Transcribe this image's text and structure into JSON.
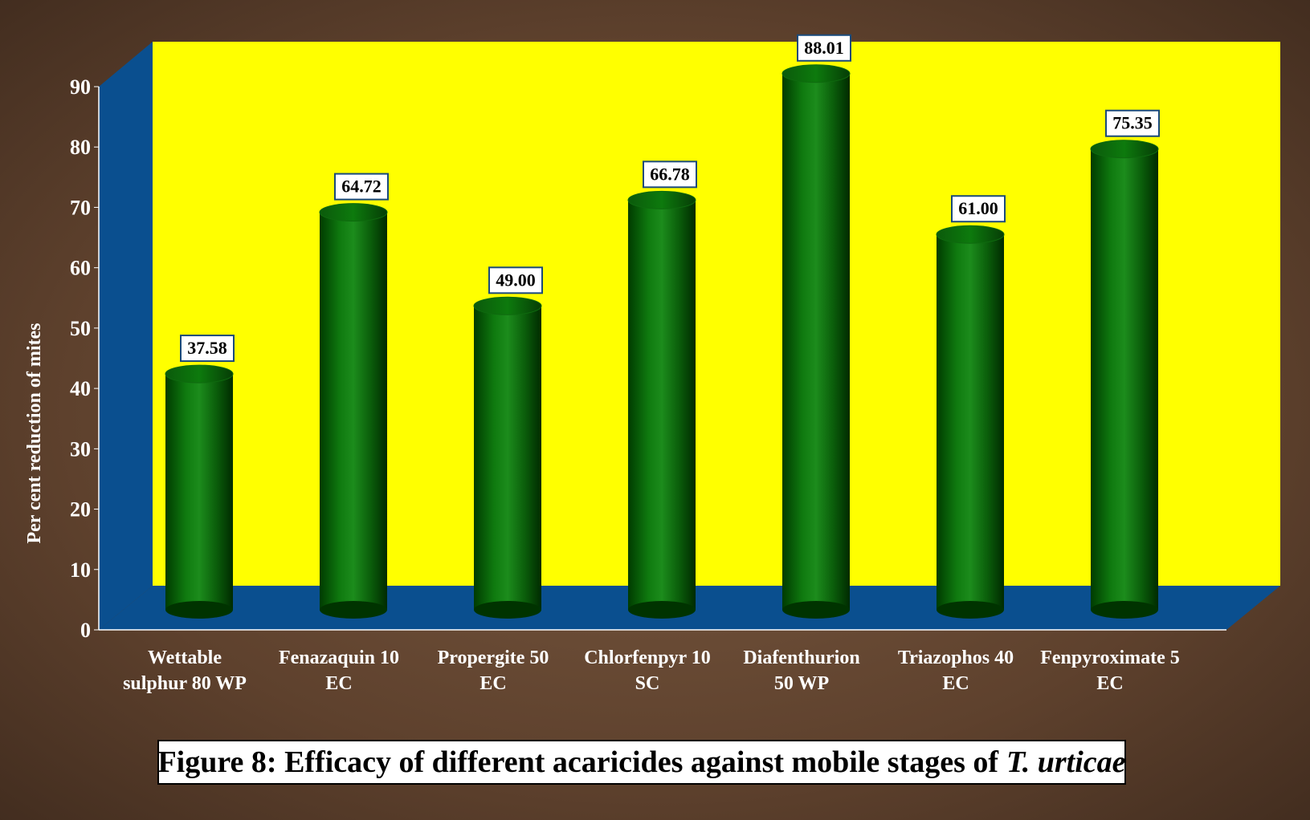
{
  "chart_data": {
    "type": "bar",
    "categories": [
      [
        "Wettable",
        "sulphur 80 WP"
      ],
      [
        "Fenazaquin 10",
        "EC"
      ],
      [
        "Propergite 50",
        "EC"
      ],
      [
        "Chlorfenpyr 10",
        "SC"
      ],
      [
        "Diafenthurion",
        "50 WP"
      ],
      [
        "Triazophos 40",
        "EC"
      ],
      [
        "Fenpyroximate 5",
        "EC"
      ]
    ],
    "values": [
      37.58,
      64.72,
      49.0,
      66.78,
      88.01,
      61.0,
      75.35
    ],
    "data_labels": [
      "37.58",
      "64.72",
      "49.00",
      "66.78",
      "88.01",
      "61.00",
      "75.35"
    ],
    "ylabel": "Per cent reduction of mites",
    "ylim": [
      0,
      90
    ],
    "yticks": [
      0,
      10,
      20,
      30,
      40,
      50,
      60,
      70,
      80,
      90
    ],
    "style": "3d-cylinder",
    "colors": {
      "bar": "#0a6e0a",
      "back_wall": "#ffff00",
      "side_wall_floor": "#0a4f8f",
      "axis_text": "#ffffff",
      "background": "#5a3f2c"
    }
  },
  "caption": {
    "text": "Figure 8: Efficacy of different acaricides against mobile stages of",
    "italic": "T. urticae"
  }
}
